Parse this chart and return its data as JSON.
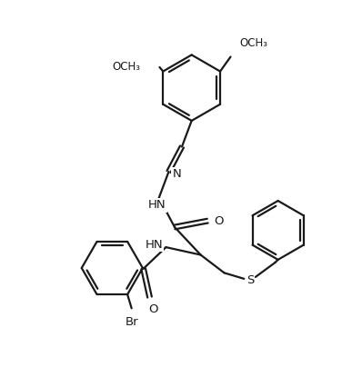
{
  "bg_color": "#ffffff",
  "line_color": "#1a1a1a",
  "bond_lw": 1.6,
  "font_size": 9.5,
  "fig_width": 3.87,
  "fig_height": 4.26,
  "dpi": 100,
  "xlim": [
    0,
    10
  ],
  "ylim": [
    0,
    11
  ]
}
